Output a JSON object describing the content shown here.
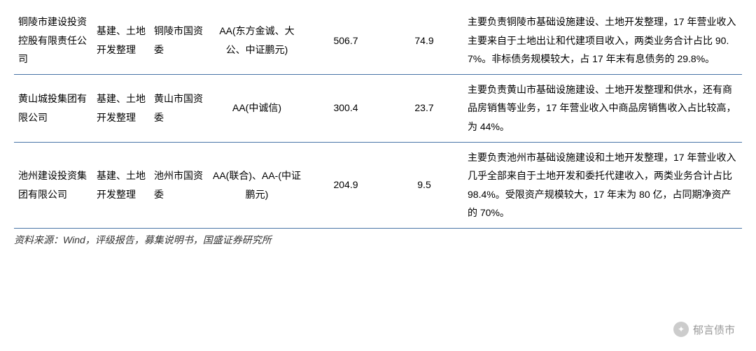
{
  "rows": [
    {
      "company": "铜陵市建设投资控股有限责任公司",
      "biz": "基建、土地开发整理",
      "owner": "铜陵市国资委",
      "rating": "AA(东方金诚、大公、中证鹏元)",
      "val1": "506.7",
      "val2": "74.9",
      "desc": "主要负责铜陵市基础设施建设、土地开发整理，17 年营业收入主要来自于土地出让和代建项目收入，两类业务合计占比 90.7%。非标债务规模较大，占 17 年末有息债务的 29.8%。"
    },
    {
      "company": "黄山城投集团有限公司",
      "biz": "基建、土地开发整理",
      "owner": "黄山市国资委",
      "rating": "AA(中诚信)",
      "val1": "300.4",
      "val2": "23.7",
      "desc": "主要负责黄山市基础设施建设、土地开发整理和供水，还有商品房销售等业务，17 年营业收入中商品房销售收入占比较高，为 44%。"
    },
    {
      "company": "池州建设投资集团有限公司",
      "biz": "基建、土地开发整理",
      "owner": "池州市国资委",
      "rating": "AA(联合)、AA-(中证鹏元)",
      "val1": "204.9",
      "val2": "9.5",
      "desc": "主要负责池州市基础设施建设和土地开发整理，17 年营业收入几乎全部来自于土地开发和委托代建收入，两类业务合计占比 98.4%。受限资产规模较大，17 年末为 80 亿，占同期净资产的 70%。"
    }
  ],
  "source": "资料来源：Wind，评级报告，募集说明书，国盛证券研究所",
  "watermark": "郁言债市",
  "colors": {
    "border": "#4874a6"
  }
}
